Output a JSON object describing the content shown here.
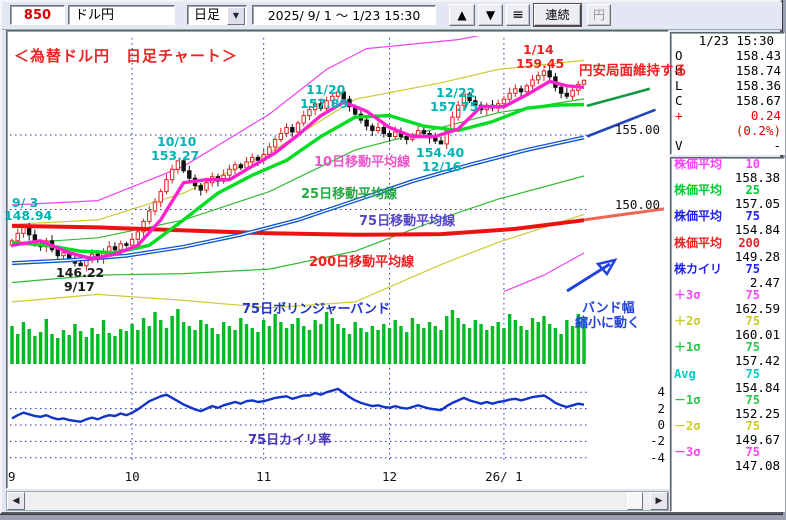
{
  "toolbar": {
    "code": "850",
    "instrument": "ドル円",
    "timeframe": "日足",
    "date_range": "2025/ 9/ 1 ～ 1/23 15:30",
    "buttons": {
      "up": "▲",
      "down": "▼",
      "menu": "≡",
      "continuous": "連続",
      "yen": "円"
    }
  },
  "annotations": {
    "title": "＜為替ドル円　日足チャート＞",
    "trend_note": "円安局面維持する",
    "swings": {
      "h0903": {
        "date": "9/ 3",
        "price": "148.94"
      },
      "l0917": {
        "price": "146.22",
        "date": "9/17"
      },
      "h1010": {
        "date": "10/10",
        "price": "153.27"
      },
      "h1120": {
        "date": "11/20",
        "price": "157.89"
      },
      "l1216": {
        "price": "154.40",
        "date": "12/16"
      },
      "h1222": {
        "date": "12/22",
        "price": "157.75"
      },
      "h0114": {
        "date": "1/14",
        "price": "159.45"
      }
    },
    "ma10": "10日移動平均線",
    "ma25": "25日移動平均線",
    "ma75": "75日移動平均線",
    "ma200": "200日移動平均線",
    "bollinger": "75日ボリンジャーバンド",
    "band_note_line1": "バンド幅",
    "band_note_line2": "縮小に動く",
    "kairi": "75日カイリ率"
  },
  "right_panel": {
    "quote": {
      "datetime": "1/23 15:30",
      "rows": [
        {
          "label": "O",
          "value": "158.43",
          "color": "#000000"
        },
        {
          "label": "H",
          "value": "158.74",
          "color": "#000000"
        },
        {
          "label": "L",
          "value": "158.36",
          "color": "#000000"
        },
        {
          "label": "C",
          "value": "158.67",
          "color": "#000000"
        },
        {
          "label": "+",
          "value": "0.24",
          "color": "#ee0000"
        },
        {
          "label": "",
          "value": "(0.2%)",
          "color": "#ee0000"
        },
        {
          "label": "V",
          "value": "-",
          "color": "#000000"
        }
      ]
    },
    "indicators": [
      {
        "label": "株価平均",
        "param": "10",
        "value": "158.38",
        "color": "#ff44ff"
      },
      {
        "label": "株価平均",
        "param": "25",
        "value": "157.05",
        "color": "#00cc33"
      },
      {
        "label": "株価平均",
        "param": "75",
        "value": "154.84",
        "color": "#2222ee"
      },
      {
        "label": "株価平均",
        "param": "200",
        "value": "149.28",
        "color": "#ee2222"
      },
      {
        "label": "株カイリ",
        "param": "75",
        "value": "2.47",
        "color": "#2222ee"
      },
      {
        "label": "＋3σ",
        "param": "75",
        "value": "162.59",
        "color": "#ff44ff"
      },
      {
        "label": "＋2σ",
        "param": "75",
        "value": "160.01",
        "color": "#cccc22"
      },
      {
        "label": "＋1σ",
        "param": "75",
        "value": "157.42",
        "color": "#22cc44"
      },
      {
        "label": "Avg",
        "param": "75",
        "value": "154.84",
        "color": "#00cccc"
      },
      {
        "label": "－1σ",
        "param": "75",
        "value": "152.25",
        "color": "#22cc44"
      },
      {
        "label": "－2σ",
        "param": "75",
        "value": "149.67",
        "color": "#cccc22"
      },
      {
        "label": "－3σ",
        "param": "75",
        "value": "147.08",
        "color": "#ff44ff"
      }
    ]
  },
  "scrollbar": {
    "left_arrow": "◀",
    "right_arrow": "▶"
  },
  "chart_data": {
    "type": "candlestick",
    "instrument": "ドル円",
    "timeframe": "日足",
    "period": "2025/9/1 - 2026/1/23",
    "x_axis": {
      "first_label": "9",
      "month_gridlines": [
        {
          "label": "10",
          "day": 21
        },
        {
          "label": "11",
          "day": 44
        },
        {
          "label": "12",
          "day": 66
        },
        {
          "label": "26/ 1",
          "day": 86
        }
      ]
    },
    "y_axis": {
      "gridline_prices": [
        155.0,
        150.0
      ]
    },
    "candles": {
      "first_open": 147.6,
      "closes": [
        147.9,
        148.4,
        148.94,
        148.3,
        147.7,
        147.5,
        147.9,
        147.3,
        146.9,
        147.1,
        146.7,
        146.4,
        146.22,
        146.6,
        147.0,
        146.7,
        147.2,
        147.5,
        147.3,
        147.7,
        147.6,
        148.0,
        148.5,
        149.2,
        149.9,
        150.5,
        151.2,
        152.0,
        152.7,
        153.27,
        152.6,
        152.1,
        151.6,
        151.3,
        151.8,
        152.2,
        151.9,
        152.3,
        152.7,
        153.0,
        152.8,
        153.2,
        153.5,
        153.3,
        153.7,
        154.2,
        154.7,
        155.1,
        155.5,
        155.2,
        155.8,
        156.3,
        156.7,
        157.1,
        156.8,
        157.3,
        157.6,
        157.89,
        157.4,
        156.9,
        156.4,
        156.0,
        155.6,
        155.3,
        155.5,
        155.1,
        154.9,
        155.2,
        154.9,
        154.7,
        155.0,
        155.3,
        155.1,
        154.8,
        154.6,
        154.4,
        155.3,
        156.2,
        157.0,
        157.75,
        157.3,
        157.0,
        156.7,
        157.0,
        156.8,
        157.1,
        157.4,
        157.8,
        158.1,
        157.9,
        158.3,
        158.7,
        159.0,
        159.3,
        158.9,
        158.2,
        157.8,
        157.6,
        158.0,
        158.4,
        158.67
      ],
      "overrides": {
        "2": {
          "high": 148.94
        },
        "12": {
          "low": 146.22
        },
        "29": {
          "high": 153.27
        },
        "57": {
          "high": 157.89
        },
        "75": {
          "low": 154.4
        },
        "79": {
          "high": 157.75
        },
        "93": {
          "high": 159.45
        },
        "100": {
          "high": 158.74,
          "low": 158.36
        }
      }
    },
    "volume": [
      38,
      30,
      42,
      35,
      28,
      32,
      45,
      30,
      26,
      34,
      29,
      40,
      33,
      27,
      36,
      30,
      44,
      31,
      28,
      35,
      33,
      40,
      34,
      46,
      38,
      52,
      44,
      36,
      48,
      55,
      42,
      38,
      34,
      44,
      40,
      36,
      30,
      42,
      38,
      34,
      46,
      40,
      36,
      32,
      44,
      38,
      50,
      42,
      36,
      40,
      46,
      38,
      34,
      44,
      40,
      52,
      46,
      40,
      36,
      30,
      42,
      36,
      32,
      38,
      34,
      40,
      36,
      44,
      38,
      32,
      46,
      40,
      36,
      42,
      38,
      34,
      48,
      54,
      46,
      40,
      36,
      44,
      40,
      34,
      38,
      42,
      36,
      50,
      44,
      38,
      34,
      46,
      42,
      48,
      40,
      36,
      30,
      44,
      38,
      50,
      46
    ],
    "oscillator": {
      "name": "75日カイリ率",
      "gridline_values": [
        4,
        2,
        0,
        -2,
        -4
      ],
      "values": [
        0.8,
        1.2,
        1.5,
        1.3,
        1.1,
        1.0,
        1.2,
        0.9,
        0.7,
        0.8,
        0.6,
        0.5,
        0.4,
        0.7,
        0.9,
        0.7,
        1.0,
        1.2,
        1.1,
        1.4,
        1.2,
        1.5,
        1.9,
        2.4,
        2.9,
        3.2,
        3.5,
        3.7,
        3.3,
        2.9,
        2.5,
        2.2,
        1.9,
        1.7,
        2.0,
        2.3,
        2.1,
        2.4,
        2.6,
        2.8,
        2.6,
        2.9,
        3.0,
        2.8,
        2.9,
        3.1,
        3.3,
        3.4,
        3.5,
        3.2,
        3.4,
        3.6,
        3.6,
        3.9,
        3.7,
        4.0,
        4.2,
        4.4,
        3.9,
        3.4,
        3.0,
        2.7,
        2.5,
        2.3,
        2.4,
        2.2,
        2.1,
        2.3,
        2.1,
        2.0,
        2.2,
        2.4,
        2.2,
        2.0,
        1.9,
        1.8,
        2.3,
        2.7,
        3.0,
        3.3,
        3.0,
        2.8,
        2.6,
        2.8,
        2.6,
        2.8,
        2.9,
        3.1,
        3.2,
        3.0,
        3.2,
        3.4,
        3.5,
        3.6,
        3.2,
        2.7,
        2.4,
        2.2,
        2.4,
        2.6,
        2.47
      ]
    },
    "lines": [
      {
        "name": "+3sigma-band",
        "color": "#ee44ee",
        "width": 1.2,
        "points": [
          [
            0,
            150.3
          ],
          [
            15,
            150.6
          ],
          [
            30,
            152.9
          ],
          [
            45,
            156.4
          ],
          [
            55,
            159.4
          ],
          [
            62,
            160.8
          ],
          [
            70,
            161.1
          ],
          [
            78,
            161.4
          ],
          [
            82,
            161.7
          ]
        ]
      },
      {
        "name": "+2sigma-band",
        "color": "#cccc33",
        "width": 1.2,
        "points": [
          [
            0,
            149.0
          ],
          [
            15,
            149.3
          ],
          [
            30,
            151.1
          ],
          [
            45,
            153.8
          ],
          [
            60,
            157.4
          ],
          [
            75,
            158.5
          ],
          [
            85,
            159.4
          ],
          [
            100,
            160.01
          ]
        ]
      },
      {
        "name": "+1sigma-band",
        "color": "#33bb33",
        "width": 1.2,
        "points": [
          [
            0,
            147.7
          ],
          [
            15,
            148.1
          ],
          [
            30,
            149.3
          ],
          [
            45,
            151.2
          ],
          [
            60,
            154.0
          ],
          [
            75,
            155.5
          ],
          [
            85,
            156.5
          ],
          [
            100,
            157.42
          ]
        ]
      },
      {
        "name": "-1sigma-band",
        "color": "#33bb33",
        "width": 1.2,
        "points": [
          [
            0,
            145.1
          ],
          [
            15,
            145.6
          ],
          [
            30,
            145.7
          ],
          [
            45,
            146.0
          ],
          [
            60,
            147.2
          ],
          [
            75,
            149.4
          ],
          [
            85,
            150.7
          ],
          [
            100,
            152.25
          ]
        ]
      },
      {
        "name": "-2sigma-band",
        "color": "#cccc33",
        "width": 1.2,
        "points": [
          [
            0,
            143.8
          ],
          [
            15,
            144.3
          ],
          [
            30,
            143.9
          ],
          [
            45,
            143.4
          ],
          [
            60,
            143.8
          ],
          [
            75,
            146.3
          ],
          [
            85,
            147.8
          ],
          [
            100,
            149.67
          ]
        ]
      },
      {
        "name": "-3sigma-band",
        "color": "#ee44ee",
        "width": 1.2,
        "points": [
          [
            86,
            144.5
          ],
          [
            93,
            145.6
          ],
          [
            100,
            147.08
          ]
        ]
      },
      {
        "name": "200日移動平均線",
        "color": "#ee1111",
        "width": 4,
        "points": [
          [
            0,
            148.9
          ],
          [
            15,
            148.8
          ],
          [
            30,
            148.6
          ],
          [
            45,
            148.4
          ],
          [
            60,
            148.3
          ],
          [
            75,
            148.35
          ],
          [
            88,
            148.7
          ],
          [
            100,
            149.28
          ]
        ]
      },
      {
        "name": "75日移動平均線",
        "color": "#1155cc",
        "width": 4,
        "double": true,
        "points": [
          [
            0,
            146.4
          ],
          [
            10,
            146.6
          ],
          [
            20,
            146.9
          ],
          [
            30,
            147.5
          ],
          [
            40,
            148.3
          ],
          [
            50,
            149.3
          ],
          [
            60,
            150.6
          ],
          [
            70,
            151.9
          ],
          [
            80,
            153.0
          ],
          [
            90,
            154.0
          ],
          [
            100,
            154.84
          ]
        ]
      },
      {
        "name": "25日移動平均線",
        "color": "#00dd22",
        "width": 3.4,
        "points": [
          [
            0,
            147.8
          ],
          [
            6,
            147.6
          ],
          [
            12,
            147.2
          ],
          [
            18,
            147.1
          ],
          [
            24,
            147.6
          ],
          [
            30,
            149.3
          ],
          [
            36,
            151.1
          ],
          [
            42,
            152.3
          ],
          [
            48,
            153.3
          ],
          [
            54,
            154.9
          ],
          [
            60,
            156.2
          ],
          [
            66,
            156.3
          ],
          [
            72,
            155.6
          ],
          [
            78,
            155.3
          ],
          [
            84,
            155.9
          ],
          [
            90,
            156.8
          ],
          [
            95,
            157.0
          ],
          [
            100,
            157.05
          ]
        ]
      },
      {
        "name": "10日移動平均線",
        "color": "#ff22cc",
        "width": 3.4,
        "points": [
          [
            0,
            147.6
          ],
          [
            5,
            147.9
          ],
          [
            10,
            147.1
          ],
          [
            14,
            146.7
          ],
          [
            18,
            147.0
          ],
          [
            22,
            147.6
          ],
          [
            26,
            149.3
          ],
          [
            30,
            151.8
          ],
          [
            34,
            152.0
          ],
          [
            38,
            152.0
          ],
          [
            42,
            152.9
          ],
          [
            46,
            153.8
          ],
          [
            50,
            155.0
          ],
          [
            54,
            156.3
          ],
          [
            58,
            157.2
          ],
          [
            62,
            156.6
          ],
          [
            66,
            155.5
          ],
          [
            70,
            154.9
          ],
          [
            74,
            154.9
          ],
          [
            78,
            155.4
          ],
          [
            82,
            156.9
          ],
          [
            86,
            156.9
          ],
          [
            90,
            157.7
          ],
          [
            94,
            158.6
          ],
          [
            97,
            158.3
          ],
          [
            100,
            158.2
          ]
        ]
      },
      {
        "name": "projection-25ma",
        "color": "#119944",
        "width": 2.6,
        "points": [
          [
            100.5,
            156.95
          ],
          [
            111.5,
            158.1
          ]
        ]
      },
      {
        "name": "projection-75ma",
        "color": "#2244bb",
        "width": 2.6,
        "points": [
          [
            100.5,
            154.9
          ],
          [
            112.5,
            156.7
          ]
        ]
      },
      {
        "name": "projection-200ma",
        "color": "#ee6655",
        "width": 3,
        "points": [
          [
            100,
            149.3
          ],
          [
            114,
            150.05
          ]
        ]
      }
    ]
  }
}
